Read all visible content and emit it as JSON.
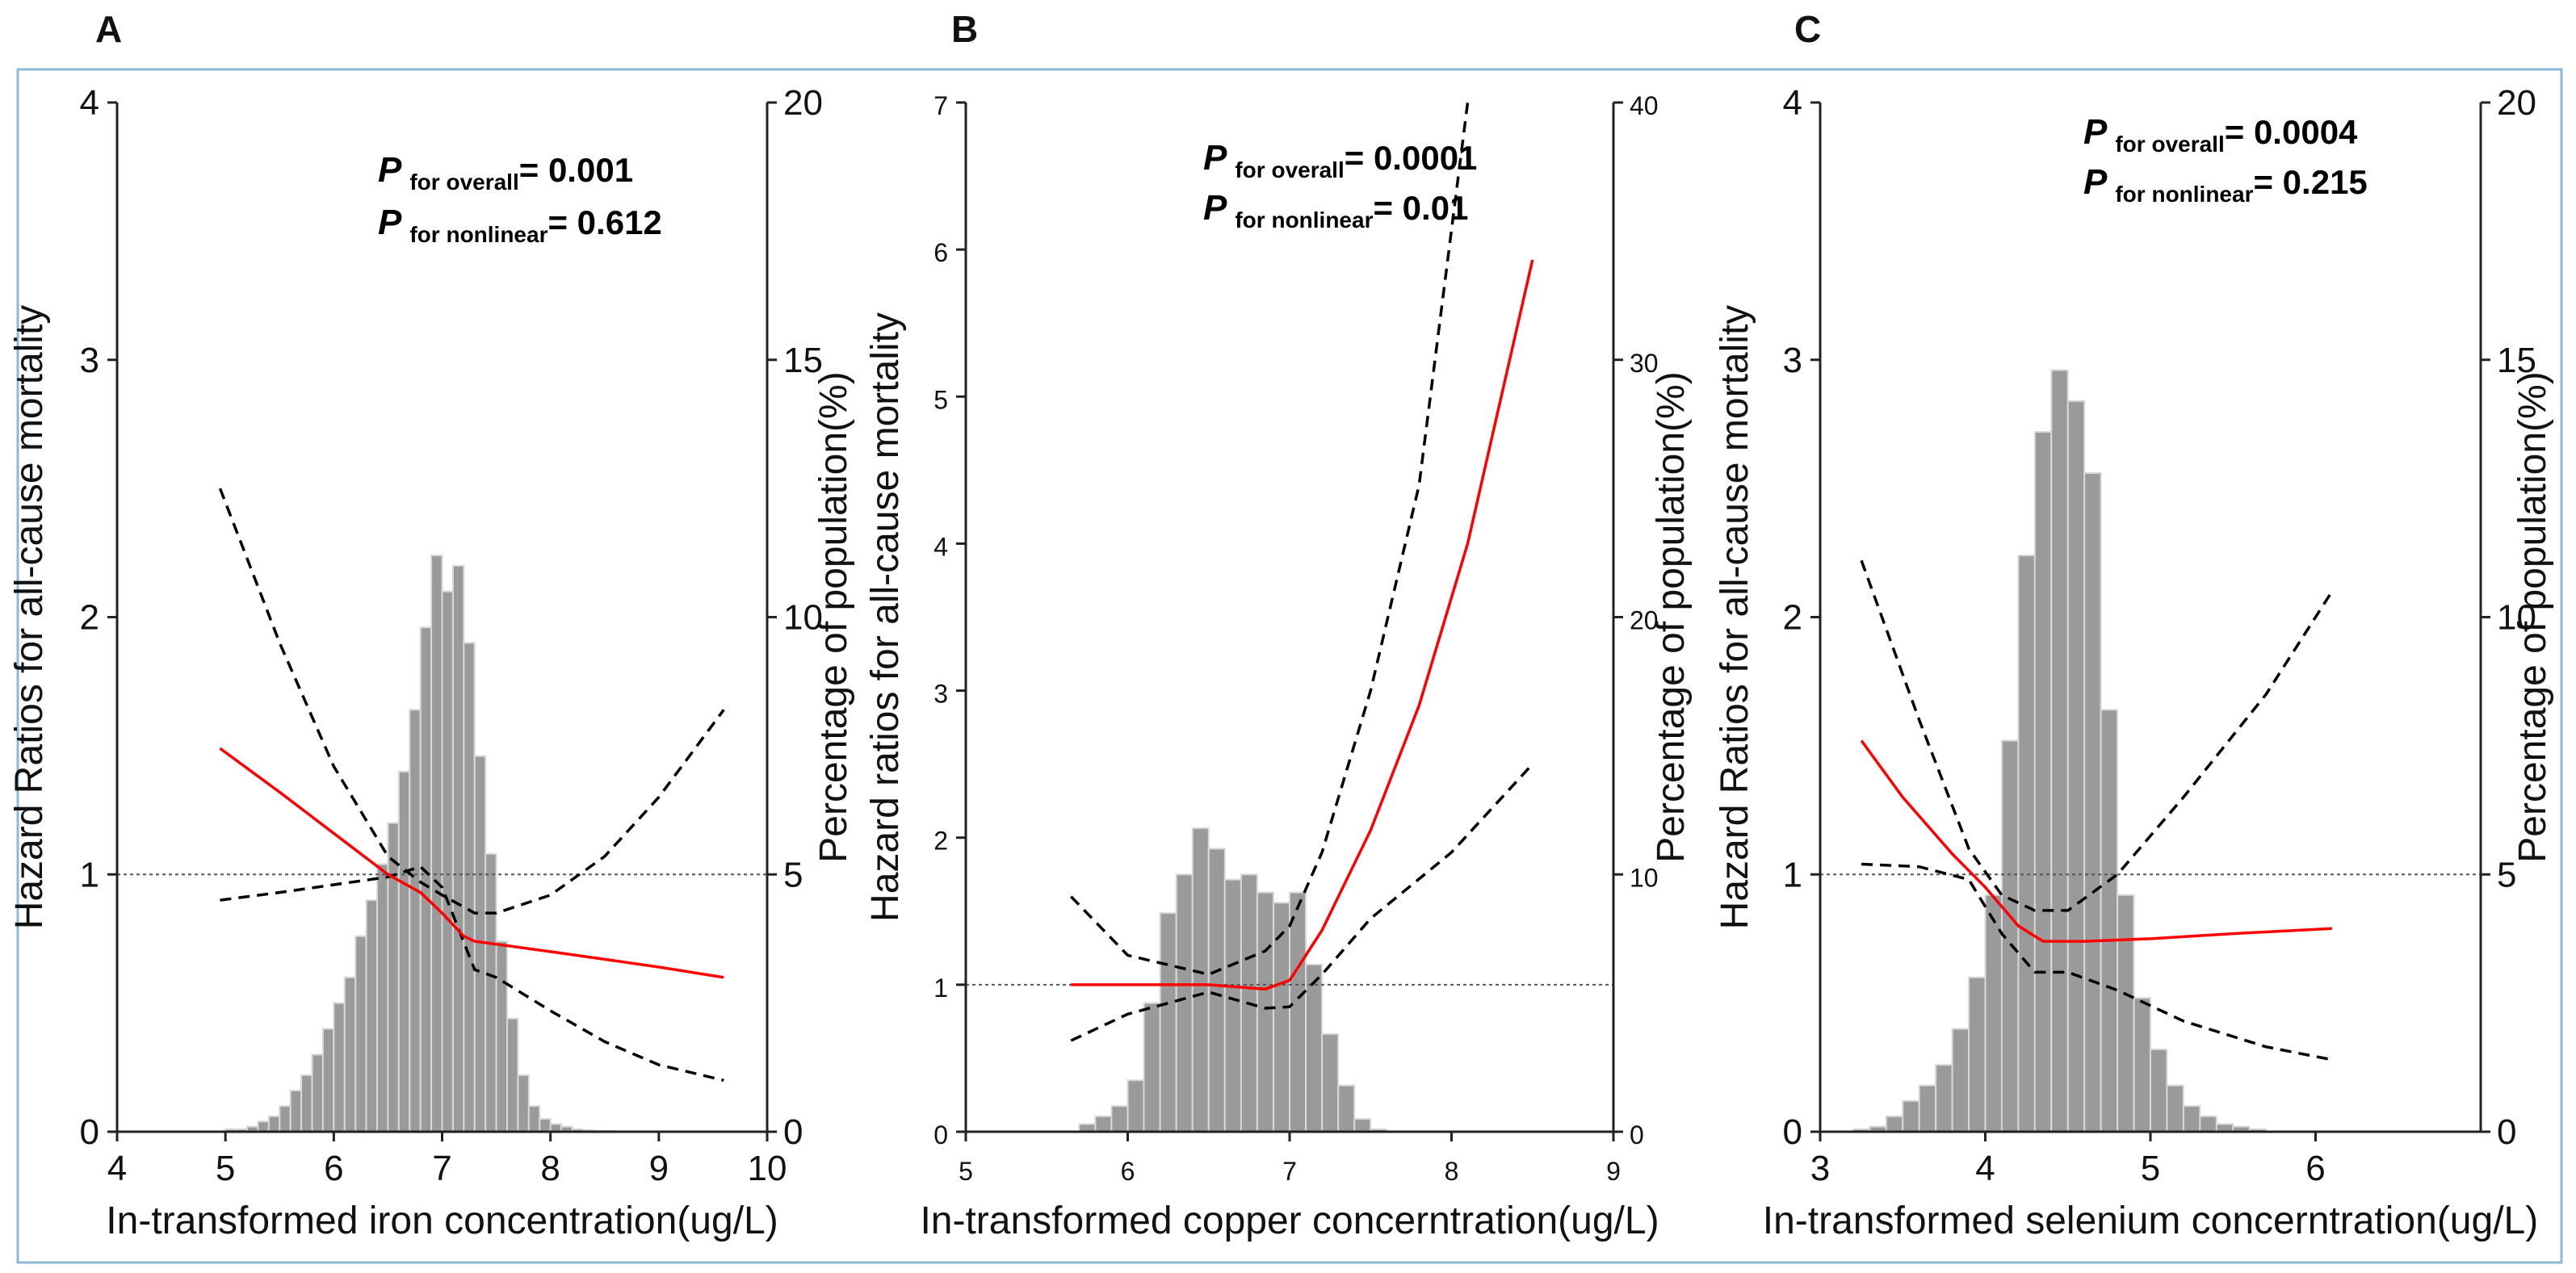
{
  "colors": {
    "frame": "#8fb8d6",
    "axis": "#222222",
    "bar_fill": "#9a9a9a",
    "bar_stroke": "#d9d9d9",
    "estimate": "#ff0000",
    "ci": "#000000",
    "reference": "#555555"
  },
  "chart_data": [
    {
      "panel": "A",
      "type": "line",
      "xlabel": "In-transformed iron concentration(ug/L)",
      "ylabel_left": "Hazard Ratios for all-cause mortality",
      "ylabel_right": "Percentage of population(%)",
      "xlim": [
        4,
        10
      ],
      "x_ticks": [
        "4",
        "5",
        "6",
        "7",
        "8",
        "9",
        "10"
      ],
      "ylim_left": [
        0,
        4
      ],
      "y_ticks_left": [
        "0",
        "1",
        "2",
        "3",
        "4"
      ],
      "ylim_right": [
        0,
        20
      ],
      "y_ticks_right": [
        "0",
        "5",
        "10",
        "15",
        "20"
      ],
      "tick_size": "large",
      "reference_hr": 1,
      "p_overall": {
        "label": "P",
        "sub": "for overall",
        "value": "= 0.001"
      },
      "p_nonlinear": {
        "label": "P",
        "sub": "for nonlinear",
        "value": "= 0.612"
      },
      "histogram": {
        "bin_start": 5.0,
        "bin_width": 0.1,
        "percent": [
          0.05,
          0.05,
          0.1,
          0.2,
          0.3,
          0.5,
          0.8,
          1.1,
          1.5,
          2.0,
          2.5,
          3.0,
          3.8,
          4.5,
          5.2,
          6.0,
          7.0,
          8.2,
          9.8,
          11.2,
          10.5,
          11.0,
          9.5,
          7.3,
          5.4,
          3.7,
          2.2,
          1.1,
          0.5,
          0.25,
          0.15,
          0.1,
          0.05,
          0.03,
          0.02,
          0.02
        ]
      },
      "estimate": {
        "x": [
          4.95,
          5.5,
          6.0,
          6.5,
          6.8,
          7.0,
          7.2,
          7.3,
          8.0,
          8.5,
          9.0,
          9.6
        ],
        "y": [
          1.49,
          1.32,
          1.16,
          1.0,
          0.93,
          0.85,
          0.76,
          0.74,
          0.7,
          0.67,
          0.64,
          0.6
        ]
      },
      "ci_upper": {
        "x": [
          4.95,
          5.5,
          6.0,
          6.5,
          6.8,
          7.0,
          7.3,
          7.5,
          8.0,
          8.5,
          9.0,
          9.6
        ],
        "y": [
          2.5,
          1.9,
          1.42,
          1.07,
          0.97,
          0.92,
          0.85,
          0.85,
          0.92,
          1.07,
          1.3,
          1.64
        ]
      },
      "ci_lower": {
        "x": [
          4.95,
          5.5,
          6.0,
          6.5,
          6.8,
          7.0,
          7.3,
          7.5,
          8.0,
          8.5,
          9.0,
          9.6
        ],
        "y": [
          0.9,
          0.93,
          0.96,
          0.99,
          1.03,
          0.95,
          0.63,
          0.6,
          0.47,
          0.35,
          0.26,
          0.2
        ]
      }
    },
    {
      "panel": "B",
      "type": "line",
      "xlabel": "In-transformed copper concerntration(ug/L)",
      "ylabel_left": "Hazard ratios for all-cause mortality",
      "ylabel_right": "Percentage of population(%)",
      "xlim": [
        5,
        9
      ],
      "x_ticks": [
        "5",
        "6",
        "7",
        "8",
        "9"
      ],
      "ylim_left": [
        0,
        7
      ],
      "y_ticks_left": [
        "0",
        "1",
        "2",
        "3",
        "4",
        "5",
        "6",
        "7"
      ],
      "ylim_right": [
        0,
        40
      ],
      "y_ticks_right": [
        "0",
        "10",
        "20",
        "30",
        "40"
      ],
      "tick_size": "small",
      "reference_hr": 1,
      "p_overall": {
        "label": "P",
        "sub": "for overall",
        "value": "= 0.0001"
      },
      "p_nonlinear": {
        "label": "P",
        "sub": "for nonlinear",
        "value": "= 0.01"
      },
      "histogram": {
        "bin_start": 5.7,
        "bin_width": 0.1,
        "percent": [
          0.3,
          0.6,
          1.0,
          2.0,
          5.0,
          8.5,
          10.0,
          11.8,
          11.0,
          9.8,
          10.0,
          9.3,
          8.9,
          9.3,
          6.5,
          3.8,
          1.8,
          0.5,
          0.1
        ]
      },
      "estimate": {
        "x": [
          5.65,
          6.0,
          6.5,
          6.85,
          7.0,
          7.2,
          7.5,
          7.8,
          8.1,
          8.5
        ],
        "y": [
          1.0,
          1.0,
          1.0,
          0.97,
          1.03,
          1.37,
          2.05,
          2.9,
          4.0,
          5.93
        ]
      },
      "ci_upper": {
        "x": [
          5.65,
          6.0,
          6.5,
          6.85,
          7.0,
          7.2,
          7.5,
          7.8,
          8.1
        ],
        "y": [
          1.6,
          1.2,
          1.07,
          1.23,
          1.4,
          1.9,
          3.0,
          4.4,
          7.0
        ]
      },
      "ci_lower": {
        "x": [
          5.65,
          6.0,
          6.5,
          6.85,
          7.0,
          7.2,
          7.5,
          8.0,
          8.5
        ],
        "y": [
          0.62,
          0.8,
          0.95,
          0.84,
          0.85,
          1.07,
          1.45,
          1.9,
          2.5
        ]
      }
    },
    {
      "panel": "C",
      "type": "line",
      "xlabel": "In-transformed selenium concerntration(ug/L)",
      "ylabel_left": "Hazard Ratios for all-cause mortality",
      "ylabel_right": "Percentage of population(%)",
      "xlim": [
        3,
        7
      ],
      "x_ticks": [
        "3",
        "4",
        "5",
        "6"
      ],
      "ylim_left": [
        0,
        4
      ],
      "y_ticks_left": [
        "0",
        "1",
        "2",
        "3",
        "4"
      ],
      "ylim_right": [
        0,
        20
      ],
      "y_ticks_right": [
        "0",
        "5",
        "10",
        "15",
        "20"
      ],
      "tick_size": "large",
      "reference_hr": 1,
      "p_overall": {
        "label": "P",
        "sub": "for overall",
        "value": "= 0.0004"
      },
      "p_nonlinear": {
        "label": "P",
        "sub": "for nonlinear",
        "value": "= 0.215"
      },
      "histogram": {
        "bin_start": 3.2,
        "bin_width": 0.1,
        "percent": [
          0.05,
          0.1,
          0.3,
          0.6,
          0.9,
          1.3,
          2.0,
          3.0,
          4.6,
          7.6,
          11.2,
          13.6,
          14.8,
          14.2,
          12.8,
          8.2,
          4.6,
          2.6,
          1.6,
          0.9,
          0.5,
          0.3,
          0.15,
          0.1,
          0.05
        ]
      },
      "estimate": {
        "x": [
          3.25,
          3.5,
          3.8,
          4.0,
          4.2,
          4.35,
          4.6,
          5.0,
          5.5,
          6.1
        ],
        "y": [
          1.52,
          1.3,
          1.08,
          0.95,
          0.8,
          0.74,
          0.74,
          0.75,
          0.77,
          0.79
        ]
      },
      "ci_upper": {
        "x": [
          3.25,
          3.6,
          3.9,
          4.1,
          4.3,
          4.5,
          4.8,
          5.2,
          5.7,
          6.1
        ],
        "y": [
          2.22,
          1.6,
          1.1,
          0.92,
          0.86,
          0.86,
          1.0,
          1.3,
          1.7,
          2.1
        ]
      },
      "ci_lower": {
        "x": [
          3.25,
          3.6,
          3.9,
          4.1,
          4.3,
          4.5,
          4.8,
          5.2,
          5.7,
          6.1
        ],
        "y": [
          1.04,
          1.03,
          0.98,
          0.77,
          0.62,
          0.62,
          0.55,
          0.43,
          0.33,
          0.28
        ]
      }
    }
  ]
}
